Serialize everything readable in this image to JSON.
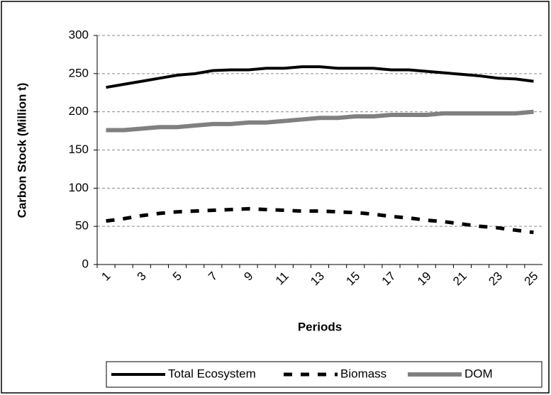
{
  "chart_data": {
    "type": "line",
    "x_label": "Periods",
    "y_label": "Carbon Stock (Million t)",
    "categories": [
      "1",
      null,
      "3",
      null,
      "5",
      null,
      "7",
      null,
      "9",
      null,
      "11",
      null,
      "13",
      null,
      "15",
      null,
      "17",
      null,
      "19",
      null,
      "21",
      null,
      "23",
      null,
      "25"
    ],
    "series": [
      {
        "name": "Total Ecosystem",
        "color": "#000000",
        "dash": "solid",
        "values": [
          232,
          236,
          240,
          244,
          248,
          250,
          254,
          255,
          255,
          257,
          257,
          259,
          259,
          257,
          257,
          257,
          255,
          255,
          253,
          251,
          249,
          247,
          244,
          243,
          240
        ]
      },
      {
        "name": "Biomass",
        "color": "#000000",
        "dash": "dashed",
        "values": [
          57,
          60,
          64,
          67,
          69,
          70,
          71,
          72,
          73,
          72,
          71,
          70,
          70,
          69,
          68,
          66,
          63,
          61,
          58,
          56,
          53,
          50,
          48,
          45,
          42
        ]
      },
      {
        "name": "DOM",
        "color": "#808080",
        "dash": "solid",
        "values": [
          176,
          176,
          178,
          180,
          180,
          182,
          184,
          184,
          186,
          186,
          188,
          190,
          192,
          192,
          194,
          194,
          196,
          196,
          196,
          198,
          198,
          198,
          198,
          198,
          200
        ]
      }
    ],
    "ylim": [
      0,
      300
    ],
    "yticks": [
      0,
      50,
      100,
      150,
      200,
      250,
      300
    ],
    "grid": true,
    "legend": "bottom"
  }
}
